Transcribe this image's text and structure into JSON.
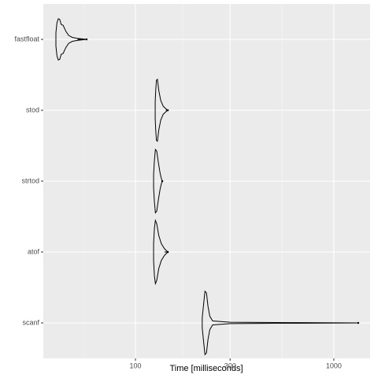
{
  "chart_data": {
    "type": "violin",
    "x_label": "Time [milliseconds]",
    "x_scale": "log",
    "xlim": [
      34.3,
      1524
    ],
    "xticks": [
      100,
      300,
      1000
    ],
    "xminor": [
      54.8,
      173.2,
      547.7
    ],
    "grid": true,
    "color": "#000000",
    "categories": [
      "fastfloat",
      "stod",
      "strtod",
      "atof",
      "scanf"
    ],
    "profiles": [
      [
        [
          39.7,
          0.2
        ],
        [
          40.2,
          0.5
        ],
        [
          40.8,
          0.62
        ],
        [
          41.5,
          0.6
        ],
        [
          42.2,
          0.45
        ],
        [
          43.2,
          0.42
        ],
        [
          44.5,
          0.25
        ],
        [
          46,
          0.12
        ],
        [
          48,
          0.06
        ],
        [
          51,
          0.03
        ],
        [
          56.7,
          0
        ]
      ],
      [
        [
          125.7,
          0.25
        ],
        [
          126.5,
          0.6
        ],
        [
          127.5,
          0.9
        ],
        [
          129,
          0.93
        ],
        [
          131,
          0.6
        ],
        [
          134,
          0.3
        ],
        [
          138,
          0.12
        ],
        [
          142,
          0.05
        ],
        [
          145.6,
          0
        ]
      ],
      [
        [
          123.4,
          0.2
        ],
        [
          124.5,
          0.6
        ],
        [
          126,
          0.95
        ],
        [
          128,
          0.9
        ],
        [
          130.5,
          0.55
        ],
        [
          133,
          0.25
        ],
        [
          135,
          0.08
        ],
        [
          136.5,
          0
        ]
      ],
      [
        [
          123.4,
          0.25
        ],
        [
          124.5,
          0.7
        ],
        [
          126,
          0.95
        ],
        [
          128,
          0.85
        ],
        [
          131,
          0.5
        ],
        [
          135,
          0.25
        ],
        [
          140,
          0.1
        ],
        [
          145.6,
          0
        ]
      ],
      [
        [
          217,
          0.15
        ],
        [
          220,
          0.5
        ],
        [
          224,
          0.95
        ],
        [
          228,
          0.9
        ],
        [
          232,
          0.5
        ],
        [
          237,
          0.2
        ],
        [
          245,
          0.06
        ],
        [
          300,
          0.02
        ],
        [
          600,
          0.01
        ],
        [
          1328,
          0
        ]
      ]
    ]
  }
}
